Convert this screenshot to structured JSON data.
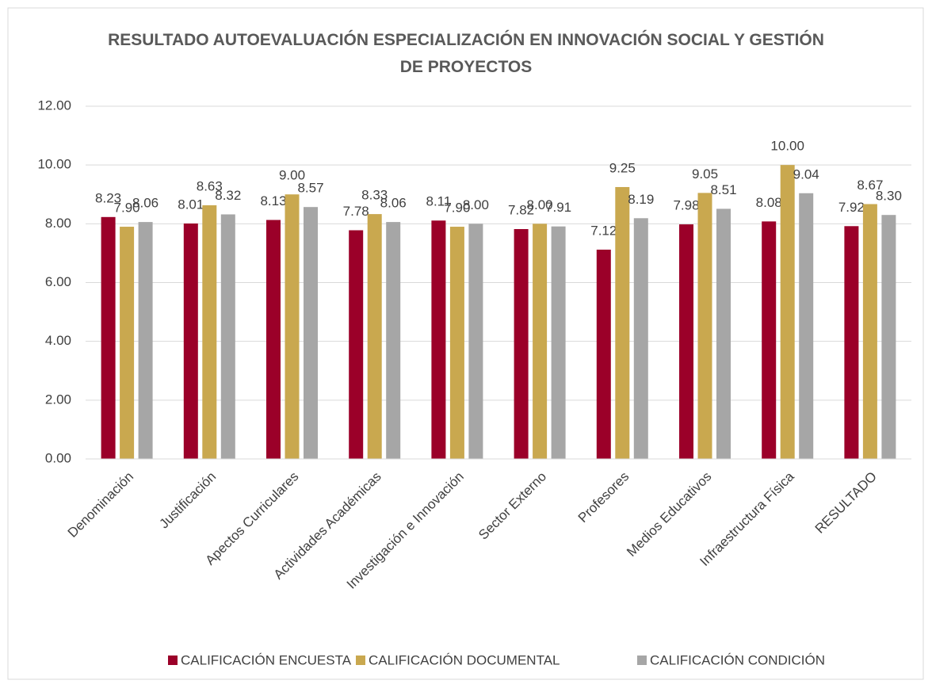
{
  "chart_data": {
    "type": "bar",
    "title": "RESULTADO AUTOEVALUACIÓN ESPECIALIZACIÓN EN INNOVACIÓN SOCIAL Y GESTIÓN DE PROYECTOS",
    "categories": [
      "Denominación",
      "Justificación",
      "Apectos Curriculares",
      "Actividades Académicas",
      "Investigación e Innovación",
      "Sector Externo",
      "Profesores",
      "Medios Educativos",
      "Infraestructura Física",
      "RESULTADO"
    ],
    "series": [
      {
        "name": "CALIFICACIÓN ENCUESTA",
        "color": "#9b0029",
        "values": [
          8.23,
          8.01,
          8.13,
          7.78,
          8.11,
          7.82,
          7.12,
          7.98,
          8.08,
          7.92
        ],
        "value_labels": [
          "8.23",
          "8.01",
          "8.13",
          "7.78",
          "8.11",
          "7.82",
          "7.12",
          "7.98",
          "8.08",
          "7.92"
        ]
      },
      {
        "name": "CALIFICACIÓN DOCUMENTAL",
        "color": "#c9a84f",
        "values": [
          7.9,
          8.63,
          9,
          8.33,
          7.9,
          8,
          9.25,
          9.05,
          10,
          8.67
        ],
        "value_labels": [
          "7.90",
          "8.63",
          "9.00",
          "8.33",
          "7.90",
          "8.00",
          "9.25",
          "9.05",
          "10.00",
          "8.67"
        ]
      },
      {
        "name": "CALIFICACIÓN CONDICIÓN",
        "color": "#a6a6a6",
        "values": [
          8.06,
          8.32,
          8.57,
          8.06,
          8,
          7.91,
          8.19,
          8.51,
          9.04,
          8.3
        ],
        "value_labels": [
          "8.06",
          "8.32",
          "8.57",
          "8.06",
          "8.00",
          "7.91",
          "8.19",
          "8.51",
          "9.04",
          "8.30"
        ]
      }
    ],
    "ylim": [
      0,
      12
    ],
    "yticks": [
      {
        "value": 0,
        "label": "0.00"
      },
      {
        "value": 2,
        "label": "2.00"
      },
      {
        "value": 4,
        "label": "4.00"
      },
      {
        "value": 6,
        "label": "6.00"
      },
      {
        "value": 8,
        "label": "8.00"
      },
      {
        "value": 10,
        "label": "10.00"
      },
      {
        "value": 12,
        "label": "12.00"
      }
    ],
    "grid": true,
    "legend": "bottom"
  }
}
